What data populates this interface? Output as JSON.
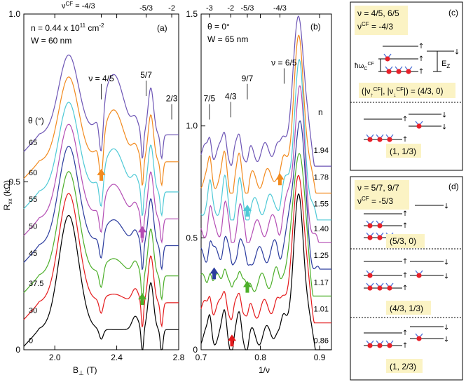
{
  "chart_data": [
    {
      "type": "line",
      "panel_label": "(a)",
      "sample_lines": [
        "n = 0.44 x 10",
        "11",
        " cm",
        "-2",
        "W = 60 nm"
      ],
      "xlabel": [
        "B",
        "⊥",
        " (T)"
      ],
      "ylabel": [
        "R",
        "xx",
        " (kΩ)"
      ],
      "xlim": [
        1.8,
        2.8
      ],
      "ylim": [
        0.0,
        1.0
      ],
      "xticks": [
        "2.0",
        "2.4",
        "2.8"
      ],
      "xtick_values": [
        2.0,
        2.4,
        2.8
      ],
      "yticks": [
        "0",
        "0.5",
        "1.0"
      ],
      "ytick_values": [
        0.0,
        0.5,
        1.0
      ],
      "top_axis_label": [
        "ν",
        "CF",
        " = -4/3"
      ],
      "top_ticks": [
        {
          "label": "-5/3",
          "x": 2.59
        },
        {
          "label": "-2",
          "x": 2.755
        }
      ],
      "top_tick_first_x": 2.3,
      "filling_labels": [
        {
          "text": "ν = 4/5",
          "x": 2.3,
          "y": 0.8
        },
        {
          "text": "5/7",
          "x": 2.59,
          "y": 0.81
        },
        {
          "text": "2/3",
          "x": 2.755,
          "y": 0.74
        }
      ],
      "theta_header": "θ (°)",
      "series": [
        {
          "name": "0",
          "color": "#000000",
          "offset": 0.0
        },
        {
          "name": "30",
          "color": "#e41a1c",
          "offset": 0.08
        },
        {
          "name": "37.5",
          "color": "#4daf2a",
          "offset": 0.16
        },
        {
          "name": "45",
          "color": "#2b3c9e",
          "offset": 0.25
        },
        {
          "name": "50",
          "color": "#b44db4",
          "offset": 0.33
        },
        {
          "name": "55",
          "color": "#4ec9d6",
          "offset": 0.41
        },
        {
          "name": "60",
          "color": "#f28a1e",
          "offset": 0.5
        },
        {
          "name": "65",
          "color": "#6d55b5",
          "offset": 0.58
        }
      ],
      "label_y_values": [
        0.02,
        0.11,
        0.19,
        0.28,
        0.36,
        0.44,
        0.52,
        0.61
      ],
      "arrows": [
        {
          "x": 2.3,
          "y": 0.52,
          "color": "#f28a1e"
        },
        {
          "x": 2.565,
          "y": 0.35,
          "color": "#b44db4"
        },
        {
          "x": 2.565,
          "y": 0.15,
          "color": "#4daf2a"
        }
      ]
    },
    {
      "type": "line",
      "panel_label": "(b)",
      "sample_lines": [
        "θ = 0°",
        "W = 65 nm"
      ],
      "xlabel": [
        "1/ν"
      ],
      "xlim": [
        0.7,
        0.92
      ],
      "ylim": [
        0.0,
        1.5
      ],
      "xticks": [
        "0.7",
        "0.8",
        "0.9"
      ],
      "xtick_values": [
        0.7,
        0.8,
        0.9
      ],
      "yticks": [
        "0",
        "0.5",
        "1.0",
        "1.5"
      ],
      "ytick_values": [
        0.0,
        0.5,
        1.0,
        1.5
      ],
      "top_ticks": [
        {
          "label": "-3",
          "x": 0.714
        },
        {
          "label": "-2",
          "x": 0.75
        },
        {
          "label": "-5/3",
          "x": 0.778
        },
        {
          "label": "-4/3",
          "x": 0.833
        }
      ],
      "filling_labels": [
        {
          "text": "7/5",
          "x": 0.714,
          "y": 1.11
        },
        {
          "text": "4/3",
          "x": 0.75,
          "y": 1.12
        },
        {
          "text": "9/7",
          "x": 0.778,
          "y": 1.2
        },
        {
          "text": "ν = 6/5",
          "x": 0.84,
          "y": 1.27
        }
      ],
      "density_header": "n",
      "series": [
        {
          "name": "0.86",
          "color": "#000000",
          "offset": 0.0
        },
        {
          "name": "1.01",
          "color": "#e41a1c",
          "offset": 0.12
        },
        {
          "name": "1.17",
          "color": "#4daf2a",
          "offset": 0.24
        },
        {
          "name": "1.25",
          "color": "#2b3c9e",
          "offset": 0.36
        },
        {
          "name": "1.40",
          "color": "#b44db4",
          "offset": 0.48
        },
        {
          "name": "1.55",
          "color": "#4ec9d6",
          "offset": 0.58
        },
        {
          "name": "1.78",
          "color": "#f28a1e",
          "offset": 0.7
        },
        {
          "name": "1.94",
          "color": "#6d55b5",
          "offset": 0.82
        }
      ],
      "label_y_values": [
        0.03,
        0.17,
        0.29,
        0.41,
        0.53,
        0.64,
        0.76,
        0.88
      ],
      "arrows": [
        {
          "x": 0.752,
          "y": 0.04,
          "color": "#e41a1c"
        },
        {
          "x": 0.778,
          "y": 0.28,
          "color": "#4daf2a"
        },
        {
          "x": 0.722,
          "y": 0.34,
          "color": "#2b3c9e"
        },
        {
          "x": 0.778,
          "y": 0.62,
          "color": "#4ec9d6"
        },
        {
          "x": 0.833,
          "y": 0.76,
          "color": "#f28a1e"
        }
      ]
    }
  ],
  "panel_c": {
    "label": "(c)",
    "header_lines": [
      "ν = 4/5, 6/5",
      "ν",
      "CF",
      " = -4/3"
    ],
    "hw_label": [
      "ħω",
      "C",
      "CF"
    ],
    "ez_label": [
      "E",
      "Z"
    ],
    "occupation_label": [
      "(|ν",
      "↑",
      "CF",
      "|, |ν",
      "↓",
      "CF",
      "|) = (4/3, 0)"
    ],
    "config_2": "(1, 1/3)"
  },
  "panel_d": {
    "label": "(d)",
    "header_lines": [
      "ν = 5/7, 9/7",
      "ν",
      "CF",
      " = -5/3"
    ],
    "configs": [
      "(5/3, 0)",
      "(4/3, 1/3)",
      "(1, 2/3)"
    ]
  },
  "colors": {
    "box_highlight": "#fbf3c4",
    "composite_fermion": "#e8202a",
    "vortex": "#4a6fd6"
  }
}
